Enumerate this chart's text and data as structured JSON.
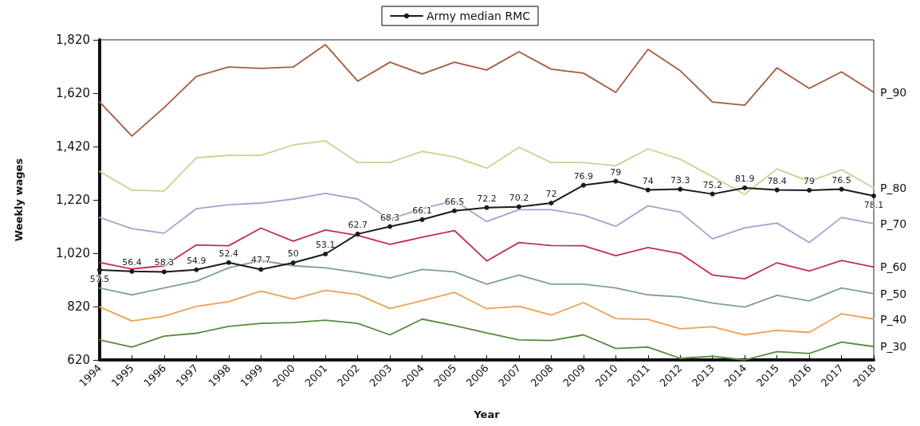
{
  "chart_data": {
    "type": "line",
    "categories": [
      "1994",
      "1995",
      "1996",
      "1997",
      "1998",
      "1999",
      "2000",
      "2001",
      "2002",
      "2003",
      "2004",
      "2005",
      "2006",
      "2007",
      "2008",
      "2009",
      "2010",
      "2011",
      "2012",
      "2013",
      "2014",
      "2015",
      "2016",
      "2017",
      "2018"
    ],
    "xlabel": "Year",
    "ylabel": "Weekly wages",
    "ylim": [
      620,
      1820
    ],
    "yticks": [
      {
        "value": 620,
        "label": "620"
      },
      {
        "value": 820,
        "label": "820"
      },
      {
        "value": 1020,
        "label": "1,020"
      },
      {
        "value": 1220,
        "label": "1,220"
      },
      {
        "value": 1420,
        "label": "1,420"
      },
      {
        "value": 1620,
        "label": "1,620"
      },
      {
        "value": 1820,
        "label": "1,820"
      }
    ],
    "grid": false,
    "legend": "top",
    "line_style": "solid",
    "series": [
      {
        "name": "P_90",
        "color": "#a65a3c",
        "marker": "none",
        "values": [
          1587,
          1459,
          1566,
          1683,
          1718,
          1713,
          1718,
          1802,
          1665,
          1736,
          1692,
          1736,
          1707,
          1775,
          1710,
          1695,
          1623,
          1784,
          1704,
          1587,
          1575,
          1715,
          1638,
          1700,
          1623
        ]
      },
      {
        "name": "P_80",
        "color": "#c8d38e",
        "marker": "none",
        "values": [
          1327,
          1256,
          1253,
          1378,
          1387,
          1387,
          1426,
          1441,
          1360,
          1360,
          1402,
          1381,
          1339,
          1417,
          1360,
          1360,
          1348,
          1411,
          1372,
          1307,
          1241,
          1336,
          1289,
          1333,
          1265
        ]
      },
      {
        "name": "P_70",
        "color": "#a3a3cf",
        "marker": "none",
        "values": [
          1154,
          1112,
          1095,
          1187,
          1202,
          1208,
          1223,
          1244,
          1223,
          1148,
          1187,
          1217,
          1139,
          1183,
          1183,
          1163,
          1121,
          1198,
          1174,
          1074,
          1115,
          1133,
          1060,
          1154,
          1131
        ]
      },
      {
        "name": "P_60",
        "color": "#c0304f",
        "marker": "none",
        "values": [
          985,
          961,
          973,
          1051,
          1048,
          1114,
          1065,
          1107,
          1087,
          1053,
          1080,
          1105,
          991,
          1060,
          1049,
          1048,
          1011,
          1041,
          1019,
          938,
          924,
          984,
          953,
          993,
          968
        ]
      },
      {
        "name": "P_50",
        "color": "#7f9f95",
        "marker": "none",
        "values": [
          890,
          864,
          890,
          915,
          965,
          993,
          973,
          965,
          948,
          927,
          959,
          950,
          904,
          938,
          904,
          904,
          890,
          864,
          856,
          833,
          818,
          862,
          841,
          890,
          868
        ]
      },
      {
        "name": "P_40",
        "color": "#f0a050",
        "marker": "none",
        "values": [
          819,
          766,
          784,
          821,
          838,
          878,
          848,
          881,
          865,
          813,
          842,
          873,
          812,
          821,
          788,
          835,
          775,
          772,
          737,
          744,
          714,
          731,
          723,
          793,
          773
        ]
      },
      {
        "name": "P_30",
        "color": "#5a8a3a",
        "marker": "none",
        "values": [
          695,
          668,
          709,
          720,
          746,
          757,
          760,
          769,
          757,
          714,
          773,
          749,
          721,
          695,
          693,
          714,
          663,
          668,
          626,
          634,
          620,
          651,
          644,
          687,
          670
        ]
      },
      {
        "name": "Army median RMC",
        "color": "#1a1a1a",
        "marker": "circle",
        "values": [
          957,
          952,
          950,
          958,
          985,
          959,
          984,
          1017,
          1092,
          1120,
          1146,
          1179,
          1191,
          1194,
          1208,
          1275,
          1290,
          1257,
          1260,
          1242,
          1265,
          1257,
          1256,
          1260,
          1235
        ]
      }
    ],
    "annotations": [
      {
        "text": "57.5",
        "x": "1994",
        "y": 957
      },
      {
        "text": "56.4",
        "x": "1995",
        "y": 952
      },
      {
        "text": "58.3",
        "x": "1996",
        "y": 950
      },
      {
        "text": "54.9",
        "x": "1997",
        "y": 958
      },
      {
        "text": "52.4",
        "x": "1998",
        "y": 985
      },
      {
        "text": "47.7",
        "x": "1999",
        "y": 959
      },
      {
        "text": "50",
        "x": "2000",
        "y": 984
      },
      {
        "text": "53.1",
        "x": "2001",
        "y": 1017
      },
      {
        "text": "62.7",
        "x": "2002",
        "y": 1092
      },
      {
        "text": "68.3",
        "x": "2003",
        "y": 1120
      },
      {
        "text": "66.1",
        "x": "2004",
        "y": 1146
      },
      {
        "text": "66.5",
        "x": "2005",
        "y": 1179
      },
      {
        "text": "72.2",
        "x": "2006",
        "y": 1191
      },
      {
        "text": "70.2",
        "x": "2007",
        "y": 1194
      },
      {
        "text": "72",
        "x": "2008",
        "y": 1208
      },
      {
        "text": "76.9",
        "x": "2009",
        "y": 1275
      },
      {
        "text": "79",
        "x": "2010",
        "y": 1290
      },
      {
        "text": "74",
        "x": "2011",
        "y": 1257
      },
      {
        "text": "73.3",
        "x": "2012",
        "y": 1260
      },
      {
        "text": "75.2",
        "x": "2013",
        "y": 1242
      },
      {
        "text": "81.9",
        "x": "2014",
        "y": 1265
      },
      {
        "text": "78.4",
        "x": "2015",
        "y": 1257
      },
      {
        "text": "79",
        "x": "2016",
        "y": 1256
      },
      {
        "text": "76.5",
        "x": "2017",
        "y": 1260
      },
      {
        "text": "78.1",
        "x": "2018",
        "y": 1235
      }
    ]
  }
}
